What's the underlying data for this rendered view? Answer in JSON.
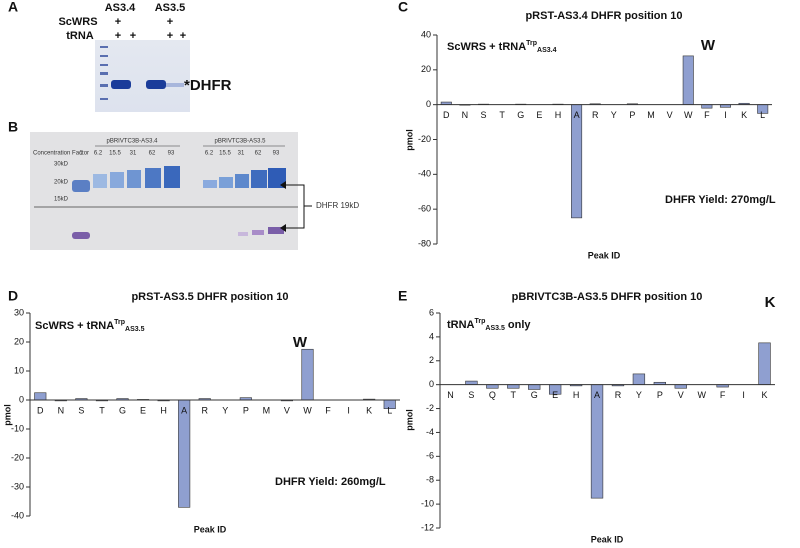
{
  "panel_labels": [
    "A",
    "B",
    "C",
    "D",
    "E"
  ],
  "gel_a": {
    "lanes": [
      "AS3.4",
      "AS3.5"
    ],
    "rows": [
      "ScWRS",
      "tRNA"
    ],
    "marks": [
      "+",
      "+",
      "+",
      "+",
      "+",
      "+"
    ],
    "band": "*DHFR"
  },
  "gel_b": {
    "row_label": "Concentration Factor",
    "lanes": [
      "1",
      "6.2",
      "15.5",
      "31",
      "62",
      "93",
      "6.2",
      "15.5",
      "31",
      "62",
      "93"
    ],
    "groups": [
      "pBRIVTC3B-AS3.4",
      "pBRIVTC3B-AS3.5"
    ],
    "markers": [
      "30kD",
      "20kD",
      "15kD"
    ],
    "band": "DHFR 19kD"
  },
  "chart_data": [
    {
      "type": "bar",
      "title": "pRST-AS3.4 DHFR position 10",
      "y_label": "pmol",
      "x_label": "Peak ID",
      "label": {
        "text": "ScWRS + tRNA",
        "sup": "Trp",
        "sub": "AS3.4"
      },
      "annotations": [
        "W",
        "DHFR Yield: 270mg/L"
      ],
      "categories": [
        "D",
        "N",
        "S",
        "T",
        "G",
        "E",
        "H",
        "A",
        "R",
        "Y",
        "P",
        "M",
        "V",
        "W",
        "F",
        "I",
        "K",
        "L"
      ],
      "values": [
        1.5,
        -0.3,
        0.3,
        0,
        0.3,
        0,
        0.3,
        -65,
        0.5,
        0,
        0.5,
        0,
        0,
        28,
        -2,
        -1.5,
        0.8,
        -5
      ],
      "color": "#8f9fd0",
      "ylim": [
        -80,
        40
      ],
      "yticks": [
        -80,
        -60,
        -40,
        -20,
        0,
        20,
        40
      ]
    },
    {
      "type": "bar",
      "title": "pRST-AS3.5 DHFR position 10",
      "y_label": "pmol",
      "x_label": "Peak ID",
      "label": {
        "text": "ScWRS + tRNA",
        "sup": "Trp",
        "sub": "AS3.5"
      },
      "annotations": [
        "W",
        "DHFR Yield: 260mg/L"
      ],
      "categories": [
        "D",
        "N",
        "S",
        "T",
        "G",
        "E",
        "H",
        "A",
        "R",
        "Y",
        "P",
        "M",
        "V",
        "W",
        "F",
        "I",
        "K",
        "L"
      ],
      "values": [
        2.5,
        -0.3,
        0.5,
        -0.3,
        0.5,
        0.2,
        -0.3,
        -37,
        0.5,
        0,
        0.8,
        0,
        -0.3,
        17.5,
        0,
        0,
        0.3,
        -3
      ],
      "color": "#8f9fd0",
      "ylim": [
        -40,
        30
      ],
      "yticks": [
        -40,
        -30,
        -20,
        -10,
        0,
        10,
        20,
        30
      ]
    },
    {
      "type": "bar",
      "title": "pBRIVTC3B-AS3.5 DHFR position 10",
      "y_label": "pmol",
      "x_label": "Peak ID",
      "label": {
        "text": "tRNA",
        "sup": "Trp",
        "sub": "AS3.5",
        "suffix": " only"
      },
      "annotations": [
        "K"
      ],
      "categories": [
        "N",
        "S",
        "Q",
        "T",
        "G",
        "E",
        "H",
        "A",
        "R",
        "Y",
        "P",
        "V",
        "W",
        "F",
        "I",
        "K"
      ],
      "values": [
        0,
        0.3,
        -0.3,
        -0.3,
        -0.4,
        -0.8,
        -0.1,
        -9.5,
        -0.1,
        0.9,
        0.2,
        -0.3,
        0,
        -0.2,
        0,
        3.5
      ],
      "color": "#8f9fd0",
      "ylim": [
        -12,
        6
      ],
      "yticks": [
        -12,
        -10,
        -8,
        -6,
        -4,
        -2,
        0,
        2,
        4,
        6
      ]
    }
  ]
}
